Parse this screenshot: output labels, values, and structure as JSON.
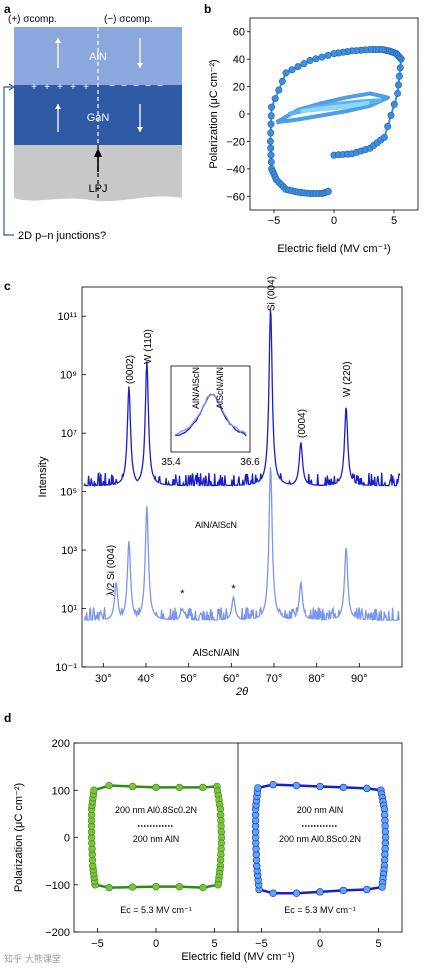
{
  "panel_letters": {
    "a": "a",
    "b": "b",
    "c": "c",
    "d": "d"
  },
  "panel_a": {
    "top_left": "(+) σcomp.",
    "top_right": "(−) σcomp.",
    "layer_top": "AlN",
    "layer_mid": "GaN",
    "substrate": "LPJ",
    "bottom_note": "2D p–n junctions?",
    "colors": {
      "aln": "#8aa8dc",
      "gan": "#2f5aa6",
      "substrate": "#c8c8c8"
    }
  },
  "watermark": "知乎 大熊课堂",
  "chart_data": [
    {
      "panel": "b",
      "type": "line",
      "xlabel": "Electric field (MV cm⁻¹)",
      "ylabel": "Polarization (μC cm⁻²)",
      "xlim": [
        -7,
        7
      ],
      "ylim": [
        -70,
        70
      ],
      "xticks": [
        -5,
        0,
        5
      ],
      "yticks": [
        -60,
        -40,
        -20,
        0,
        20,
        40,
        60
      ],
      "series": [
        {
          "color": "#3d8fe0",
          "marker": true,
          "x": [
            0,
            1.5,
            3,
            4.2,
            5.3,
            5.6,
            5.2,
            4.6,
            4,
            3,
            1.5,
            0,
            -2,
            -4,
            -5.2,
            -5.3,
            -5.2,
            -4.8,
            -4,
            -3,
            -2,
            -1,
            -0.3
          ],
          "y": [
            -30,
            -29,
            -25,
            -17,
            15,
            40,
            44,
            46,
            47,
            47,
            46,
            44,
            39,
            30,
            5,
            -20,
            -40,
            -48,
            -55,
            -57,
            -58,
            -58,
            -56
          ]
        },
        {
          "color": "#4d9de8",
          "marker": false,
          "x": [
            -4.8,
            -3,
            -1,
            1,
            3,
            4.5,
            3,
            1,
            -1,
            -3,
            -4.8
          ],
          "y": [
            -6,
            -4,
            -1,
            2,
            6,
            12,
            15,
            12,
            8,
            3,
            -6
          ]
        },
        {
          "color": "#5ab4ee",
          "marker": false,
          "x": [
            -3.8,
            -2,
            0,
            2,
            3.8,
            2,
            0,
            -2,
            -3.8
          ],
          "y": [
            0,
            3,
            5,
            7,
            10,
            9,
            7,
            4,
            0
          ]
        },
        {
          "color": "#8fd6f5",
          "marker": false,
          "x": [
            -2.8,
            -1,
            1,
            2.8,
            1,
            -1,
            -2.8
          ],
          "y": [
            2,
            3.5,
            5,
            8,
            6,
            4,
            2
          ]
        }
      ]
    },
    {
      "panel": "c",
      "type": "line",
      "xlabel": "2θ",
      "ylabel": "Intensity",
      "xlim": [
        25,
        100
      ],
      "yscale": "log",
      "ylim": [
        0.1,
        1000000000000.0
      ],
      "xticks": [
        "30°",
        "40°",
        "50°",
        "60°",
        "70°",
        "80°",
        "90°"
      ],
      "xtick_values": [
        30,
        40,
        50,
        60,
        70,
        80,
        90
      ],
      "yticks": [
        "10⁻¹",
        "10¹",
        "10³",
        "10⁵",
        "10⁷",
        "10⁹",
        "10¹¹"
      ],
      "ytick_exps": [
        -1,
        1,
        3,
        5,
        7,
        9,
        11
      ],
      "series": [
        {
          "name": "AlN/AlScN",
          "color": "#1a1ec8",
          "baseline_exp": 5.2,
          "peaks": [
            [
              36.0,
              8.6
            ],
            [
              40.2,
              9.45
            ],
            [
              69.2,
              11.3
            ],
            [
              76.3,
              6.7
            ],
            [
              86.9,
              7.9
            ]
          ]
        },
        {
          "name": "AlScN/AlN",
          "color": "#7b95f0",
          "baseline_exp": 0.6,
          "peaks": [
            [
              33.0,
              1.9
            ],
            [
              36.0,
              3.3
            ],
            [
              40.2,
              4.5
            ],
            [
              48.5,
              1.0
            ],
            [
              60.5,
              1.4
            ],
            [
              69.2,
              5.9
            ],
            [
              76.3,
              1.9
            ],
            [
              86.9,
              3.1
            ]
          ]
        }
      ],
      "annotations": [
        "(0002)",
        "W (110)",
        "Si (004)",
        "(0004)",
        "W (220)",
        "λ/2 Si (004)",
        "*",
        "*"
      ],
      "inset": {
        "xlim": [
          35.4,
          36.6
        ],
        "xticks": [
          "35.4",
          "36.6"
        ],
        "labels": [
          "AlN/AlScN",
          "AlScN/AlN"
        ]
      }
    },
    {
      "panel": "d",
      "type": "line",
      "xlabel": "Electric field (MV cm⁻¹)",
      "ylabel": "Polarization (μC cm⁻²)",
      "ylim": [
        -200,
        200
      ],
      "yticks": [
        -200,
        -100,
        0,
        100,
        200
      ],
      "xticks": [
        -5,
        0,
        5
      ],
      "subplots": [
        {
          "xlim": [
            -7,
            7
          ],
          "color": "#2e8c1e",
          "marker_color": "#7fc23a",
          "stack_top": "200 nm Al0.8Sc0.2N",
          "stack_bottom": "200 nm AlN",
          "ec": "Ec = 5.3 MV cm⁻¹",
          "x": [
            -5.2,
            -5.4,
            -5.5,
            -5.5,
            -5.3,
            -4,
            -2,
            0,
            2,
            4,
            5.2,
            5.5,
            5.6,
            5.5,
            5.3,
            4,
            2,
            0,
            -2,
            -4,
            -5.2
          ],
          "y": [
            -100,
            -60,
            0,
            60,
            100,
            110,
            108,
            106,
            106,
            106,
            108,
            60,
            0,
            -60,
            -100,
            -106,
            -104,
            -104,
            -105,
            -106,
            -100
          ]
        },
        {
          "xlim": [
            -7,
            7
          ],
          "color": "#1820c8",
          "marker_color": "#5ca8f0",
          "stack_top": "200 nm AlN",
          "stack_bottom": "200 nm Al0.8Sc0.2N",
          "ec": "Ec = 5.3 MV cm⁻¹",
          "x": [
            -5.2,
            -5.4,
            -5.5,
            -5.5,
            -5.3,
            -4,
            -2,
            0,
            2,
            4,
            5.2,
            5.5,
            5.6,
            5.5,
            5.3,
            4,
            2,
            0,
            -2,
            -4,
            -5.2
          ],
          "y": [
            -110,
            -60,
            0,
            60,
            105,
            112,
            110,
            108,
            106,
            104,
            100,
            60,
            0,
            -60,
            -105,
            -110,
            -112,
            -115,
            -118,
            -118,
            -110
          ]
        }
      ]
    }
  ]
}
